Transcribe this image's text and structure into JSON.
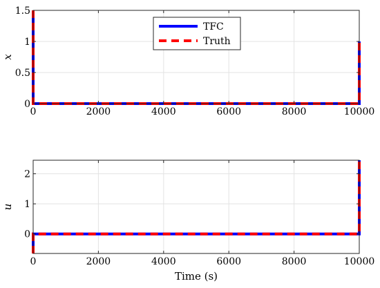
{
  "chart_data": [
    {
      "type": "line",
      "ylabel": "x",
      "xlim": [
        0,
        10000
      ],
      "ylim": [
        0,
        1.5
      ],
      "x_ticks": [
        0,
        2000,
        4000,
        6000,
        8000,
        10000
      ],
      "x_tick_labels": [
        "0",
        "2000",
        "4000",
        "6000",
        "8000",
        "10000"
      ],
      "y_ticks": [
        0,
        0.5,
        1,
        1.5
      ],
      "y_tick_labels": [
        "0",
        "0.5",
        "1",
        "1.5"
      ],
      "grid": true,
      "legend": "top-center",
      "series": [
        {
          "name": "TFC",
          "color": "#0000ff",
          "style": "solid",
          "x": [
            0,
            0,
            10000,
            10000
          ],
          "y": [
            1.5,
            0,
            0,
            1
          ]
        },
        {
          "name": "Truth",
          "color": "#ff0000",
          "style": "dashed",
          "x": [
            0,
            0,
            10000,
            10000
          ],
          "y": [
            1.5,
            0,
            0,
            1
          ]
        }
      ]
    },
    {
      "type": "line",
      "ylabel": "u",
      "xlabel": "Time (s)",
      "xlim": [
        0,
        10000
      ],
      "ylim": [
        -0.65,
        2.45
      ],
      "x_ticks": [
        0,
        2000,
        4000,
        6000,
        8000,
        10000
      ],
      "x_tick_labels": [
        "0",
        "2000",
        "4000",
        "6000",
        "8000",
        "10000"
      ],
      "y_ticks": [
        0,
        1,
        2
      ],
      "y_tick_labels": [
        "0",
        "1",
        "2"
      ],
      "grid": true,
      "series": [
        {
          "name": "TFC",
          "color": "#0000ff",
          "style": "solid",
          "x": [
            0,
            0,
            10000,
            10000
          ],
          "y": [
            -0.65,
            0,
            0,
            2.45
          ]
        },
        {
          "name": "Truth",
          "color": "#ff0000",
          "style": "dashed",
          "x": [
            0,
            0,
            10000,
            10000
          ],
          "y": [
            -0.65,
            0,
            0,
            2.45
          ]
        }
      ]
    }
  ]
}
